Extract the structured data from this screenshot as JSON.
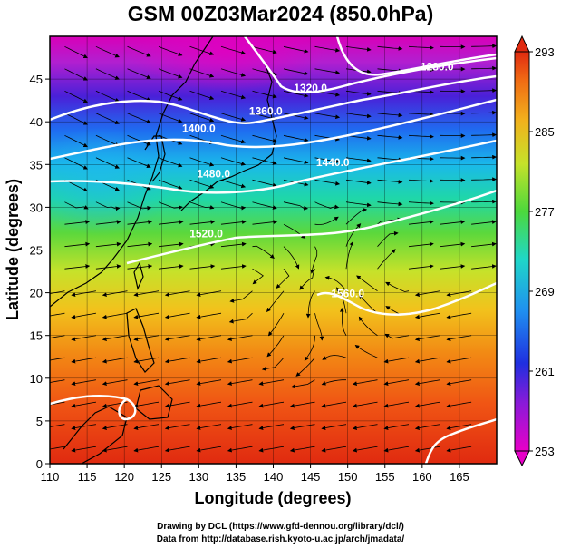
{
  "title": "GSM 00Z03Mar2024 (850.0hPa)",
  "axes": {
    "xlabel": "Longitude (degrees)",
    "ylabel": "Latitude  (degrees)",
    "xticks": [
      "110",
      "115",
      "120",
      "125",
      "130",
      "135",
      "140",
      "145",
      "150",
      "155",
      "160",
      "165"
    ],
    "yticks": [
      "0",
      "5",
      "10",
      "15",
      "20",
      "25",
      "30",
      "35",
      "40",
      "45"
    ],
    "xlim": [
      110,
      170
    ],
    "ylim": [
      0,
      50
    ]
  },
  "colorbar": {
    "labels": [
      "293",
      "285",
      "277",
      "269",
      "261",
      "253"
    ],
    "range": [
      253,
      293
    ]
  },
  "contours": [
    {
      "label": "1280.0",
      "lon": 162,
      "lat": 46
    },
    {
      "label": "1320.0",
      "lon": 145,
      "lat": 43.5
    },
    {
      "label": "1360.0",
      "lon": 139,
      "lat": 40.8
    },
    {
      "label": "1400.0",
      "lon": 130,
      "lat": 38.8
    },
    {
      "label": "1440.0",
      "lon": 148,
      "lat": 34.8
    },
    {
      "label": "1480.0",
      "lon": 132,
      "lat": 33.5
    },
    {
      "label": "1520.0",
      "lon": 131,
      "lat": 26.5
    },
    {
      "label": "1560.0",
      "lon": 150,
      "lat": 19.5
    }
  ],
  "credits": {
    "line1": "Drawing by DCL (https://www.gfd-dennou.org/library/dcl/)",
    "line2": "Data from http://database.rish.kyoto-u.ac.jp/arch/jmadata/"
  }
}
